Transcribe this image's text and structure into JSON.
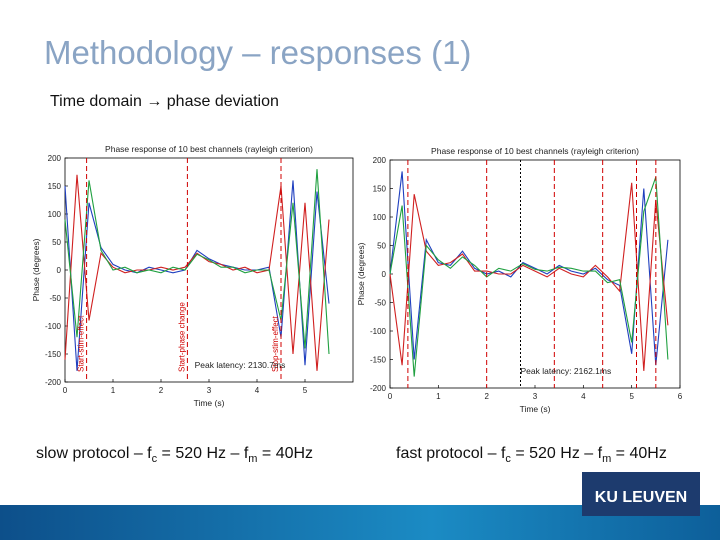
{
  "slide": {
    "title": "Methodology – responses (1)",
    "subtitle": "Time domain → phase deviation",
    "captions": [
      [
        "slow protocol – f",
        "c",
        " = 520 Hz – f",
        "m",
        " = 40Hz"
      ],
      [
        "fast protocol – f",
        "c",
        " = 520 Hz – f",
        "m",
        " = 40Hz"
      ]
    ],
    "logo": "KU LEUVEN"
  },
  "chart_data": [
    {
      "type": "line",
      "title": "Phase response of 10 best channels (rayleigh criterion)",
      "xlabel": "Time (s)",
      "ylabel": "Phase (degrees)",
      "x": [
        0,
        0.25,
        0.5,
        0.75,
        1,
        1.25,
        1.5,
        1.75,
        2,
        2.25,
        2.5,
        2.75,
        3,
        3.25,
        3.5,
        3.75,
        4,
        4.25,
        4.5,
        4.75,
        5,
        5.25,
        5.5
      ],
      "xlim": [
        0,
        6
      ],
      "xticks": [
        0,
        1,
        2,
        3,
        4,
        5
      ],
      "ylim": [
        -200,
        200
      ],
      "yticks": [
        -200,
        -150,
        -100,
        -50,
        0,
        50,
        100,
        150,
        200
      ],
      "series": [
        {
          "color": "#1f3fbf",
          "values": [
            150,
            -180,
            120,
            40,
            10,
            0,
            -5,
            5,
            0,
            -5,
            0,
            35,
            20,
            10,
            5,
            0,
            0,
            5,
            -120,
            160,
            -170,
            140,
            -60
          ]
        },
        {
          "color": "#d02020",
          "values": [
            -160,
            170,
            -90,
            30,
            5,
            -5,
            0,
            0,
            5,
            0,
            5,
            30,
            15,
            10,
            0,
            5,
            -5,
            0,
            150,
            -150,
            120,
            -180,
            90
          ]
        },
        {
          "color": "#20a040",
          "values": [
            90,
            -120,
            160,
            35,
            0,
            5,
            -5,
            0,
            -5,
            5,
            0,
            28,
            18,
            5,
            5,
            -5,
            0,
            0,
            -90,
            120,
            -140,
            180,
            -150
          ]
        }
      ],
      "vlines": [
        0.45,
        2.55,
        4.5
      ],
      "vline_color": "#d00000",
      "annotations": [
        "Start-stim-effect",
        "Start-phase change",
        "Stop-stim-effect"
      ],
      "peak_label": "Peak latency: 2130.7ms"
    },
    {
      "type": "line",
      "title": "Phase response of 10 best channels (rayleigh criterion)",
      "xlabel": "Time (s)",
      "ylabel": "Phase (degrees)",
      "x": [
        0,
        0.25,
        0.5,
        0.75,
        1,
        1.25,
        1.5,
        1.75,
        2,
        2.25,
        2.5,
        2.75,
        3,
        3.25,
        3.5,
        3.75,
        4,
        4.25,
        4.5,
        4.75,
        5,
        5.25,
        5.5,
        5.75
      ],
      "xlim": [
        0,
        6
      ],
      "xticks": [
        0,
        1,
        2,
        3,
        4,
        5,
        6
      ],
      "ylim": [
        -200,
        200
      ],
      "yticks": [
        -200,
        -150,
        -100,
        -50,
        0,
        50,
        100,
        150,
        200
      ],
      "series": [
        {
          "color": "#1f3fbf",
          "values": [
            0,
            180,
            -150,
            60,
            20,
            15,
            40,
            10,
            0,
            5,
            -5,
            20,
            10,
            0,
            15,
            5,
            0,
            10,
            -10,
            -20,
            -140,
            150,
            -160,
            60
          ]
        },
        {
          "color": "#d02020",
          "values": [
            0,
            -160,
            140,
            40,
            15,
            20,
            35,
            5,
            5,
            0,
            0,
            15,
            5,
            -5,
            10,
            0,
            -5,
            15,
            -5,
            -30,
            160,
            -170,
            130,
            -90
          ]
        },
        {
          "color": "#20a040",
          "values": [
            0,
            120,
            -180,
            50,
            25,
            10,
            30,
            15,
            -5,
            10,
            5,
            18,
            8,
            5,
            12,
            10,
            5,
            5,
            -15,
            -10,
            -120,
            110,
            170,
            -150
          ]
        }
      ],
      "vlines": [
        0.37,
        2.0,
        3.4,
        4.4,
        5.1,
        5.5
      ],
      "vline_color": "#d00000",
      "dotted_lines": [
        2.7
      ],
      "peak_label": "Peak latency: 2162.1ms"
    }
  ]
}
